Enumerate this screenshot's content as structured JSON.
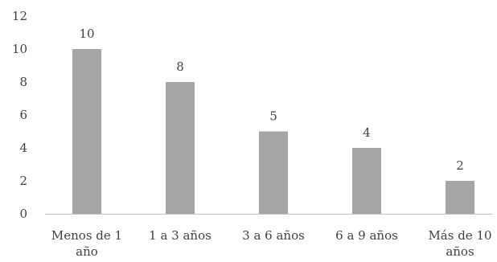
{
  "chart_data": {
    "type": "bar",
    "title": "",
    "xlabel": "",
    "ylabel": "",
    "categories": [
      [
        "Menos de 1",
        "año"
      ],
      [
        "1 a 3 años"
      ],
      [
        "3 a 6 años"
      ],
      [
        "6 a 9 años"
      ],
      [
        "Más de 10",
        "años"
      ]
    ],
    "values": [
      10,
      8,
      5,
      4,
      2
    ],
    "data_labels": [
      "10",
      "8",
      "5",
      "4",
      "2"
    ],
    "ylim": [
      0,
      12
    ],
    "yticks": [
      0,
      2,
      4,
      6,
      8,
      10,
      12
    ],
    "ytick_labels": [
      "0",
      "2",
      "4",
      "6",
      "8",
      "10",
      "12"
    ],
    "grid": false,
    "legend": "none",
    "bar_color": "#a6a6a6",
    "axis_color": "#bfbfbf"
  }
}
